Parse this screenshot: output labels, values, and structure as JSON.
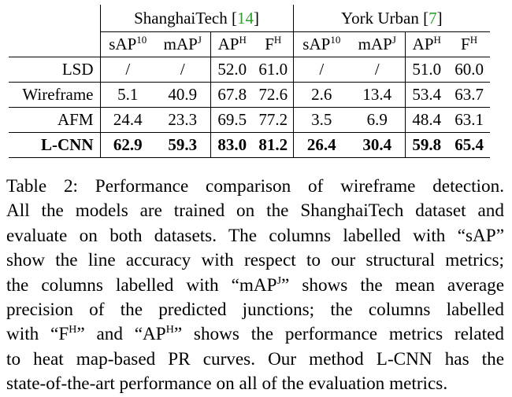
{
  "table": {
    "groups": [
      {
        "name": "ShanghaiTech",
        "ref": "14"
      },
      {
        "name": "York Urban",
        "ref": "7"
      }
    ],
    "metrics": [
      {
        "base": "sAP",
        "sup": "10"
      },
      {
        "base": "mAP",
        "sup": "J"
      },
      {
        "base": "AP",
        "sup": "H"
      },
      {
        "base": "F",
        "sup": "H"
      }
    ],
    "rows": [
      {
        "method": "LSD",
        "values": [
          "/",
          "/",
          "52.0",
          "61.0",
          "/",
          "/",
          "51.0",
          "60.0"
        ]
      },
      {
        "method": "Wireframe",
        "values": [
          "5.1",
          "40.9",
          "67.8",
          "72.6",
          "2.6",
          "13.4",
          "53.4",
          "63.7"
        ]
      },
      {
        "method": "AFM",
        "values": [
          "24.4",
          "23.3",
          "69.5",
          "77.2",
          "3.5",
          "6.9",
          "48.4",
          "63.1"
        ]
      },
      {
        "method": "L-CNN",
        "values": [
          "62.9",
          "59.3",
          "83.0",
          "81.2",
          "26.4",
          "30.4",
          "59.8",
          "65.4"
        ]
      }
    ]
  },
  "caption": {
    "l1": "Table 2:  Performance comparison of wireframe detection.",
    "l2": "All the models are trained on the ShanghaiTech dataset and",
    "l3": "evaluate on both datasets.  The columns labelled with “sAP”",
    "l4": "show the line accuracy with respect to our structural metrics;",
    "l5a": "the columns labelled with “mAP",
    "l5sup": "J",
    "l5b": "” shows the mean average",
    "l6": "precision of the predicted junctions;  the columns labelled",
    "l7a": "with “F",
    "l7sup1": "H",
    "l7b": "” and “AP",
    "l7sup2": "H",
    "l7c": "” shows the performance metrics related",
    "l8": "to heat map-based PR curves.  Our method L-CNN has the",
    "l9": "state-of-the-art performance on all of the evaluation metrics."
  }
}
